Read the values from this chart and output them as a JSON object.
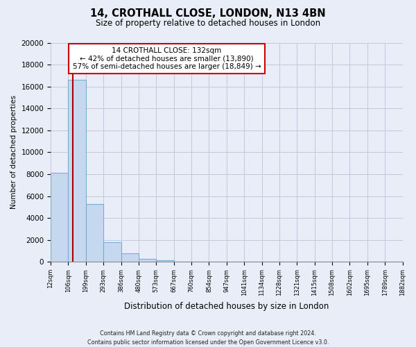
{
  "title": "14, CROTHALL CLOSE, LONDON, N13 4BN",
  "subtitle": "Size of property relative to detached houses in London",
  "xlabel": "Distribution of detached houses by size in London",
  "ylabel": "Number of detached properties",
  "bar_values": [
    8100,
    16600,
    5300,
    1800,
    750,
    300,
    170,
    0,
    0,
    0,
    0,
    0,
    0,
    0,
    0,
    0,
    0,
    0,
    0,
    0
  ],
  "bar_labels": [
    "12sqm",
    "106sqm",
    "199sqm",
    "293sqm",
    "386sqm",
    "480sqm",
    "573sqm",
    "667sqm",
    "760sqm",
    "854sqm",
    "947sqm",
    "1041sqm",
    "1134sqm",
    "1228sqm",
    "1321sqm",
    "1415sqm",
    "1508sqm",
    "1602sqm",
    "1695sqm",
    "1789sqm",
    "1882sqm"
  ],
  "bar_color": "#c5d8f0",
  "bar_edge_color": "#7aadd4",
  "vline_color": "#aa0000",
  "annotation_title": "14 CROTHALL CLOSE: 132sqm",
  "annotation_line1": "← 42% of detached houses are smaller (13,890)",
  "annotation_line2": "57% of semi-detached houses are larger (18,849) →",
  "annotation_box_facecolor": "#ffffff",
  "annotation_box_edgecolor": "#cc0000",
  "ylim": [
    0,
    20000
  ],
  "yticks": [
    0,
    2000,
    4000,
    6000,
    8000,
    10000,
    12000,
    14000,
    16000,
    18000,
    20000
  ],
  "footer_line1": "Contains HM Land Registry data © Crown copyright and database right 2024.",
  "footer_line2": "Contains public sector information licensed under the Open Government Licence v3.0.",
  "bg_color": "#e8edf8",
  "plot_bg_color": "#e8edf8",
  "grid_color": "#c0c8dc"
}
